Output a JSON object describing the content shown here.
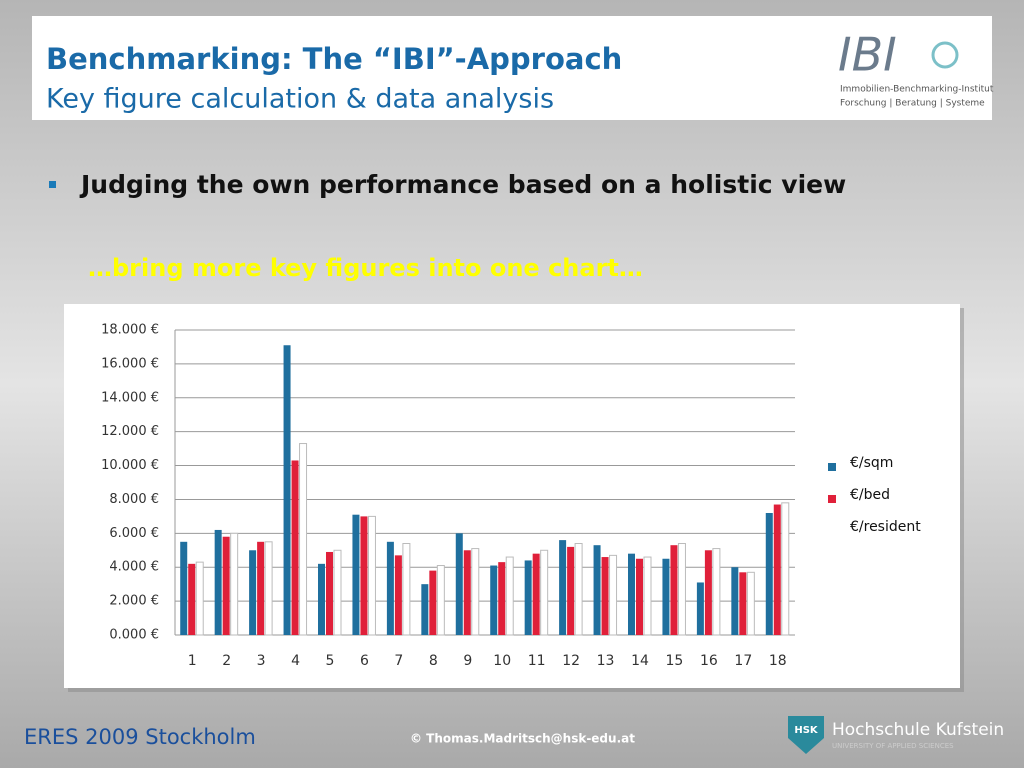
{
  "header": {
    "title": "Benchmarking: The “IBI”-Approach",
    "subtitle": "Key figure calculation & data analysis",
    "logo": {
      "name": "IBI",
      "line1": "Immobilien-Benchmarking-Institut",
      "line2": "Forschung | Beratung | Systeme"
    }
  },
  "bullet": "Judging the own performance based on a holistic view",
  "highlight": "…bring more key figures into one chart…",
  "chart_data": {
    "type": "bar",
    "categories": [
      "1",
      "2",
      "3",
      "4",
      "5",
      "6",
      "7",
      "8",
      "9",
      "10",
      "11",
      "12",
      "13",
      "14",
      "15",
      "16",
      "17",
      "18"
    ],
    "series": [
      {
        "name": "€/sqm",
        "color": "#1f6f9e",
        "values": [
          5500,
          6200,
          5000,
          17100,
          4200,
          7100,
          5500,
          3000,
          6000,
          4100,
          4400,
          5600,
          5300,
          4800,
          4500,
          3100,
          4000,
          7200
        ]
      },
      {
        "name": "€/bed",
        "color": "#e0203a",
        "values": [
          4200,
          5800,
          5500,
          10300,
          4900,
          7000,
          4700,
          3800,
          5000,
          4300,
          4800,
          5200,
          4600,
          4500,
          5300,
          5000,
          3700,
          7700
        ]
      },
      {
        "name": "€/resident",
        "color": "#ffffff",
        "values": [
          4300,
          6000,
          5500,
          11300,
          5000,
          7000,
          5400,
          4100,
          5100,
          4600,
          5000,
          5400,
          4700,
          4600,
          5400,
          5100,
          3700,
          7800
        ]
      }
    ],
    "ylim": [
      0,
      18000
    ],
    "yticks": [
      {
        "value": 0,
        "label": "0.000 €"
      },
      {
        "value": 2000,
        "label": "2.000 €"
      },
      {
        "value": 4000,
        "label": "4.000 €"
      },
      {
        "value": 6000,
        "label": "6.000 €"
      },
      {
        "value": 8000,
        "label": "8.000 €"
      },
      {
        "value": 10000,
        "label": "10.000 €"
      },
      {
        "value": 12000,
        "label": "12.000 €"
      },
      {
        "value": 14000,
        "label": "14.000 €"
      },
      {
        "value": 16000,
        "label": "16.000 €"
      },
      {
        "value": 18000,
        "label": "18.000 €"
      }
    ],
    "grid": true,
    "legend": "right"
  },
  "footer": {
    "event": "ERES 2009 Stockholm",
    "copyright": "© Thomas.Madritsch@hsk-edu.at",
    "school": "Hochschule Kufstein",
    "badge": "HSK",
    "school_sub": "UNIVERSITY OF APPLIED SCIENCES"
  }
}
